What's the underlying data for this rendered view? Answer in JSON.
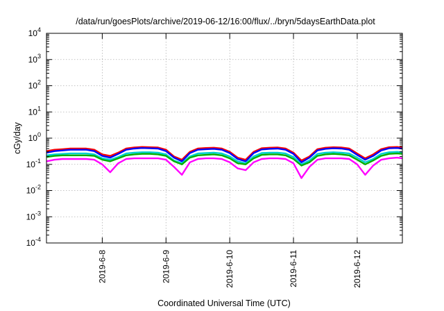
{
  "chart_data": {
    "type": "line",
    "title": "/data/run/goesPlots/archive/2019-06-12/16:00/flux/../bryn/5daysEarthData.plot",
    "xlabel": "Coordinated Universal Time (UTC)",
    "ylabel": "cGy/day",
    "yscale": "log",
    "ylim": [
      0.0001,
      10000
    ],
    "y_ticks": [
      {
        "value": 0.0001,
        "base": "10",
        "exp": "-4"
      },
      {
        "value": 0.001,
        "base": "10",
        "exp": "-3"
      },
      {
        "value": 0.01,
        "base": "10",
        "exp": "-2"
      },
      {
        "value": 0.1,
        "base": "10",
        "exp": "-1"
      },
      {
        "value": 1,
        "base": "10",
        "exp": "0"
      },
      {
        "value": 10,
        "base": "10",
        "exp": "1"
      },
      {
        "value": 100,
        "base": "10",
        "exp": "2"
      },
      {
        "value": 1000,
        "base": "10",
        "exp": "3"
      },
      {
        "value": 10000,
        "base": "10",
        "exp": "4"
      }
    ],
    "xlim": [
      "2019-06-07T03:00",
      "2019-06-12T17:00"
    ],
    "x_ticks": [
      {
        "value": "2019-06-08T00:00",
        "label": "2019-6-8"
      },
      {
        "value": "2019-06-09T00:00",
        "label": "2019-6-9"
      },
      {
        "value": "2019-06-10T00:00",
        "label": "2019-6-10"
      },
      {
        "value": "2019-06-11T00:00",
        "label": "2019-6-11"
      },
      {
        "value": "2019-06-12T00:00",
        "label": "2019-6-12"
      }
    ],
    "grid": true,
    "legend": "none",
    "x": [
      "2019-06-07T03:00",
      "2019-06-07T06:00",
      "2019-06-07T09:00",
      "2019-06-07T12:00",
      "2019-06-07T15:00",
      "2019-06-07T18:00",
      "2019-06-07T21:00",
      "2019-06-08T00:00",
      "2019-06-08T03:00",
      "2019-06-08T06:00",
      "2019-06-08T09:00",
      "2019-06-08T12:00",
      "2019-06-08T15:00",
      "2019-06-08T18:00",
      "2019-06-08T21:00",
      "2019-06-09T00:00",
      "2019-06-09T03:00",
      "2019-06-09T06:00",
      "2019-06-09T09:00",
      "2019-06-09T12:00",
      "2019-06-09T15:00",
      "2019-06-09T18:00",
      "2019-06-09T21:00",
      "2019-06-10T00:00",
      "2019-06-10T03:00",
      "2019-06-10T06:00",
      "2019-06-10T09:00",
      "2019-06-10T12:00",
      "2019-06-10T15:00",
      "2019-06-10T18:00",
      "2019-06-10T21:00",
      "2019-06-11T00:00",
      "2019-06-11T03:00",
      "2019-06-11T06:00",
      "2019-06-11T09:00",
      "2019-06-11T12:00",
      "2019-06-11T15:00",
      "2019-06-11T18:00",
      "2019-06-11T21:00",
      "2019-06-12T00:00",
      "2019-06-12T03:00",
      "2019-06-12T06:00",
      "2019-06-12T09:00",
      "2019-06-12T12:00",
      "2019-06-12T15:00",
      "2019-06-12T17:00"
    ],
    "series": [
      {
        "color": "#ff0000",
        "values": [
          0.32,
          0.36,
          0.38,
          0.4,
          0.4,
          0.4,
          0.36,
          0.24,
          0.21,
          0.28,
          0.4,
          0.44,
          0.46,
          0.45,
          0.44,
          0.36,
          0.2,
          0.15,
          0.3,
          0.4,
          0.42,
          0.43,
          0.4,
          0.3,
          0.18,
          0.15,
          0.3,
          0.41,
          0.43,
          0.44,
          0.4,
          0.28,
          0.14,
          0.2,
          0.38,
          0.43,
          0.45,
          0.44,
          0.4,
          0.26,
          0.17,
          0.24,
          0.38,
          0.45,
          0.46,
          0.44
        ]
      },
      {
        "color": "#0000ff",
        "values": [
          0.28,
          0.32,
          0.34,
          0.36,
          0.36,
          0.36,
          0.32,
          0.21,
          0.18,
          0.25,
          0.36,
          0.4,
          0.42,
          0.41,
          0.4,
          0.32,
          0.18,
          0.13,
          0.27,
          0.36,
          0.38,
          0.39,
          0.36,
          0.27,
          0.16,
          0.13,
          0.27,
          0.37,
          0.39,
          0.4,
          0.36,
          0.25,
          0.12,
          0.18,
          0.34,
          0.39,
          0.41,
          0.4,
          0.36,
          0.23,
          0.15,
          0.21,
          0.34,
          0.41,
          0.42,
          0.4
        ]
      },
      {
        "color": "#00d0d0",
        "values": [
          0.22,
          0.24,
          0.25,
          0.26,
          0.26,
          0.26,
          0.24,
          0.17,
          0.15,
          0.19,
          0.26,
          0.28,
          0.29,
          0.29,
          0.28,
          0.24,
          0.14,
          0.11,
          0.2,
          0.26,
          0.27,
          0.28,
          0.26,
          0.2,
          0.13,
          0.11,
          0.2,
          0.27,
          0.28,
          0.28,
          0.26,
          0.19,
          0.1,
          0.14,
          0.25,
          0.28,
          0.29,
          0.28,
          0.26,
          0.18,
          0.12,
          0.16,
          0.25,
          0.29,
          0.3,
          0.29
        ]
      },
      {
        "color": "#00b000",
        "values": [
          0.19,
          0.21,
          0.22,
          0.22,
          0.22,
          0.22,
          0.21,
          0.15,
          0.13,
          0.17,
          0.22,
          0.24,
          0.25,
          0.25,
          0.24,
          0.21,
          0.13,
          0.1,
          0.18,
          0.22,
          0.23,
          0.24,
          0.22,
          0.17,
          0.11,
          0.1,
          0.17,
          0.23,
          0.24,
          0.24,
          0.22,
          0.16,
          0.09,
          0.12,
          0.21,
          0.24,
          0.25,
          0.24,
          0.22,
          0.15,
          0.1,
          0.14,
          0.21,
          0.25,
          0.26,
          0.25
        ]
      },
      {
        "color": "#ff00ff",
        "values": [
          0.13,
          0.15,
          0.16,
          0.16,
          0.16,
          0.16,
          0.15,
          0.1,
          0.05,
          0.11,
          0.16,
          0.17,
          0.17,
          0.17,
          0.17,
          0.15,
          0.08,
          0.04,
          0.12,
          0.16,
          0.17,
          0.17,
          0.16,
          0.12,
          0.07,
          0.06,
          0.12,
          0.16,
          0.17,
          0.17,
          0.16,
          0.11,
          0.03,
          0.08,
          0.15,
          0.17,
          0.17,
          0.17,
          0.16,
          0.1,
          0.04,
          0.09,
          0.15,
          0.17,
          0.18,
          0.17
        ]
      }
    ]
  }
}
